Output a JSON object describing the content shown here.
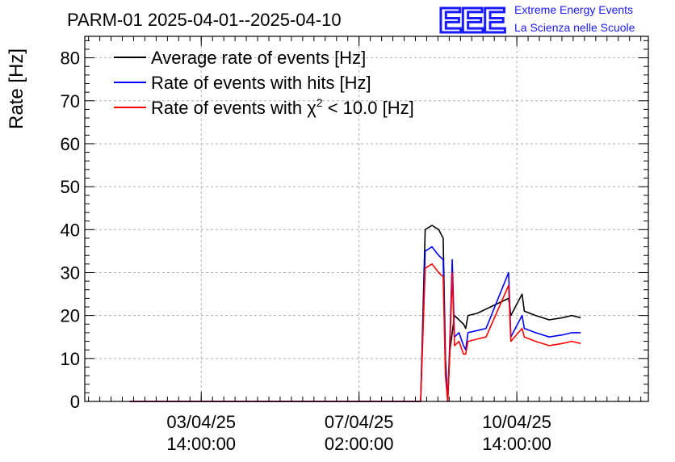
{
  "chart_data": {
    "type": "line",
    "title": "PARM-01 2025-04-01--2025-04-10",
    "ylabel": "Rate [Hz]",
    "xlabel": "",
    "ylim": [
      0,
      85
    ],
    "y_ticks": [
      0,
      10,
      20,
      30,
      40,
      50,
      60,
      70,
      80
    ],
    "x_tick_labels": [
      {
        "date": "03/04/25",
        "time": "14:00:00"
      },
      {
        "date": "07/04/25",
        "time": "02:00:00"
      },
      {
        "date": "10/04/25",
        "time": "14:00:00"
      }
    ],
    "grid": true,
    "legend_position": "top-left",
    "logo": {
      "text": "EEE",
      "line1": "Extreme Energy Events",
      "line2": "La Scienza nelle Scuole",
      "color": "#1a1aff"
    },
    "series": [
      {
        "name": "Average rate of events [Hz]",
        "color": "#000000",
        "points": [
          [
            1.0,
            0
          ],
          [
            4.0,
            0
          ],
          [
            7.0,
            0
          ],
          [
            7.3,
            0
          ],
          [
            7.45,
            0
          ],
          [
            7.55,
            40
          ],
          [
            7.7,
            41
          ],
          [
            7.85,
            40
          ],
          [
            7.9,
            39
          ],
          [
            7.95,
            38
          ],
          [
            8.0,
            10
          ],
          [
            8.05,
            0
          ],
          [
            8.1,
            12
          ],
          [
            8.2,
            20
          ],
          [
            8.3,
            19
          ],
          [
            8.4,
            18
          ],
          [
            8.45,
            17
          ],
          [
            8.5,
            20
          ],
          [
            8.7,
            20.5
          ],
          [
            9.0,
            22
          ],
          [
            9.4,
            24
          ],
          [
            9.45,
            20
          ],
          [
            9.7,
            25
          ],
          [
            9.75,
            21
          ],
          [
            10.0,
            20
          ],
          [
            10.3,
            19
          ],
          [
            10.6,
            19.5
          ],
          [
            10.8,
            20
          ],
          [
            11.0,
            19.5
          ]
        ]
      },
      {
        "name": "Rate of events with hits [Hz]",
        "color": "#0000ff",
        "points": [
          [
            1.0,
            0
          ],
          [
            4.0,
            0
          ],
          [
            7.0,
            0
          ],
          [
            7.3,
            0
          ],
          [
            7.45,
            0
          ],
          [
            7.55,
            35
          ],
          [
            7.7,
            36
          ],
          [
            7.85,
            34
          ],
          [
            7.95,
            33
          ],
          [
            8.0,
            8
          ],
          [
            8.05,
            0
          ],
          [
            8.1,
            15
          ],
          [
            8.15,
            33
          ],
          [
            8.2,
            15
          ],
          [
            8.3,
            16
          ],
          [
            8.4,
            13
          ],
          [
            8.45,
            12
          ],
          [
            8.5,
            16
          ],
          [
            8.7,
            16.5
          ],
          [
            8.9,
            17
          ],
          [
            9.4,
            30
          ],
          [
            9.45,
            15
          ],
          [
            9.7,
            20
          ],
          [
            9.75,
            17
          ],
          [
            10.0,
            16
          ],
          [
            10.3,
            15
          ],
          [
            10.6,
            15.5
          ],
          [
            10.8,
            16
          ],
          [
            11.0,
            16
          ]
        ]
      },
      {
        "name": "Rate of events with χ² < 10.0 [Hz]",
        "color": "#ff0000",
        "points": [
          [
            1.0,
            0
          ],
          [
            4.0,
            0
          ],
          [
            7.0,
            0
          ],
          [
            7.3,
            0
          ],
          [
            7.45,
            0
          ],
          [
            7.55,
            31
          ],
          [
            7.7,
            32
          ],
          [
            7.85,
            30
          ],
          [
            7.95,
            29
          ],
          [
            8.0,
            6
          ],
          [
            8.05,
            0
          ],
          [
            8.1,
            13
          ],
          [
            8.15,
            30
          ],
          [
            8.2,
            13
          ],
          [
            8.3,
            14
          ],
          [
            8.4,
            11
          ],
          [
            8.45,
            11
          ],
          [
            8.5,
            14
          ],
          [
            8.7,
            14.5
          ],
          [
            8.9,
            15
          ],
          [
            9.4,
            27
          ],
          [
            9.45,
            14
          ],
          [
            9.7,
            17
          ],
          [
            9.75,
            15
          ],
          [
            10.0,
            14
          ],
          [
            10.3,
            13
          ],
          [
            10.6,
            13.5
          ],
          [
            10.8,
            14
          ],
          [
            11.0,
            13.5
          ]
        ]
      }
    ]
  },
  "legend": {
    "label_black": "Average rate of events [Hz]",
    "label_blue": "Rate of events with hits [Hz]",
    "label_red_prefix": "Rate of events with ",
    "label_red_chi": "χ",
    "label_red_sup": "2",
    "label_red_suffix": " < 10.0 [Hz]"
  }
}
